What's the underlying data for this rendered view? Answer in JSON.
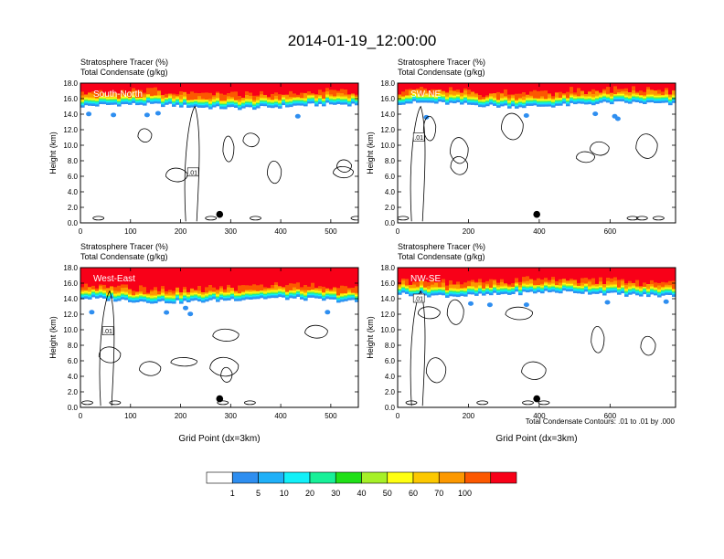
{
  "figure": {
    "title": "2014-01-19_12:00:00",
    "footnote": "Total Condensate Contours: .01 to .01 by .000"
  },
  "colorbar": {
    "colors": [
      "#ffffff",
      "#2e8ef0",
      "#1fb0f8",
      "#12f0f8",
      "#18f098",
      "#20e018",
      "#a6f028",
      "#ffff12",
      "#fcc800",
      "#fc9800",
      "#fc5800",
      "#f80018"
    ],
    "labels": [
      "1",
      "5",
      "10",
      "20",
      "30",
      "40",
      "50",
      "60",
      "70",
      "100"
    ]
  },
  "chart_data": [
    {
      "type": "contour",
      "panel": "south-north",
      "title_line1": "Stratosphere Tracer   (%)",
      "title_line2": "Total Condensate   (g/kg)",
      "section_label": "South-North",
      "ylabel": "Height (km)",
      "xlabel": "",
      "xlim": [
        0,
        555
      ],
      "ylim": [
        0,
        18
      ],
      "xticks": [
        0,
        100,
        200,
        300,
        400,
        500
      ],
      "xtick_labels": [
        "0",
        "100",
        "200",
        "300",
        "400",
        "500"
      ],
      "yticks": [
        0,
        2,
        4,
        6,
        8,
        10,
        12,
        14,
        16,
        18
      ],
      "ytick_labels": [
        "0.0",
        "2.0",
        "4.0",
        "6.0",
        "8.0",
        "10.0",
        "12.0",
        "14.0",
        "16.0",
        "18.0"
      ],
      "marker": {
        "x": 278,
        "y": 1.1
      },
      "contour_label": ".01",
      "contour_label_pos": {
        "x": 225,
        "y": 6.5
      },
      "tropopause_base_km": 15.0
    },
    {
      "type": "contour",
      "panel": "sw-ne",
      "title_line1": "Stratosphere Tracer   (%)",
      "title_line2": "Total Condensate   (g/kg)",
      "section_label": "SW-NE",
      "ylabel": "Height (km)",
      "xlabel": "",
      "xlim": [
        0,
        785
      ],
      "ylim": [
        0,
        18
      ],
      "xticks": [
        0,
        200,
        400,
        600
      ],
      "xtick_labels": [
        "0",
        "200",
        "400",
        "600"
      ],
      "yticks": [
        0,
        2,
        4,
        6,
        8,
        10,
        12,
        14,
        16,
        18
      ],
      "ytick_labels": [
        "0.0",
        "2.0",
        "4.0",
        "6.0",
        "8.0",
        "10.0",
        "12.0",
        "14.0",
        "16.0",
        "18.0"
      ],
      "marker": {
        "x": 393,
        "y": 1.1
      },
      "contour_label": ".01",
      "contour_label_pos": {
        "x": 60,
        "y": 11.0
      },
      "tropopause_base_km": 15.2
    },
    {
      "type": "contour",
      "panel": "west-east",
      "title_line1": "Stratosphere Tracer   (%)",
      "title_line2": "Total Condensate   (g/kg)",
      "section_label": "West-East",
      "ylabel": "Height (km)",
      "xlabel": "Grid Point (dx=3km)",
      "xlim": [
        0,
        555
      ],
      "ylim": [
        0,
        18
      ],
      "xticks": [
        0,
        100,
        200,
        300,
        400,
        500
      ],
      "xtick_labels": [
        "0",
        "100",
        "200",
        "300",
        "400",
        "500"
      ],
      "yticks": [
        0,
        2,
        4,
        6,
        8,
        10,
        12,
        14,
        16,
        18
      ],
      "ytick_labels": [
        "0.0",
        "2.0",
        "4.0",
        "6.0",
        "8.0",
        "10.0",
        "12.0",
        "14.0",
        "16.0",
        "18.0"
      ],
      "marker": {
        "x": 278,
        "y": 1.1
      },
      "contour_label": ".01",
      "contour_label_pos": {
        "x": 55,
        "y": 9.8
      },
      "tropopause_base_km": 13.8
    },
    {
      "type": "contour",
      "panel": "nw-se",
      "title_line1": "Stratosphere Tracer   (%)",
      "title_line2": "Total Condensate   (g/kg)",
      "section_label": "NW-SE",
      "ylabel": "Height (km)",
      "xlabel": "Grid Point (dx=3km)",
      "xlim": [
        0,
        785
      ],
      "ylim": [
        0,
        18
      ],
      "xticks": [
        0,
        200,
        400,
        600
      ],
      "xtick_labels": [
        "0",
        "200",
        "400",
        "600"
      ],
      "yticks": [
        0,
        2,
        4,
        6,
        8,
        10,
        12,
        14,
        16,
        18
      ],
      "ytick_labels": [
        "0.0",
        "2.0",
        "4.0",
        "6.0",
        "8.0",
        "10.0",
        "12.0",
        "14.0",
        "16.0",
        "18.0"
      ],
      "marker": {
        "x": 393,
        "y": 1.1
      },
      "contour_label": ".01",
      "contour_label_pos": {
        "x": 60,
        "y": 14.0
      },
      "tropopause_base_km": 14.6
    }
  ]
}
